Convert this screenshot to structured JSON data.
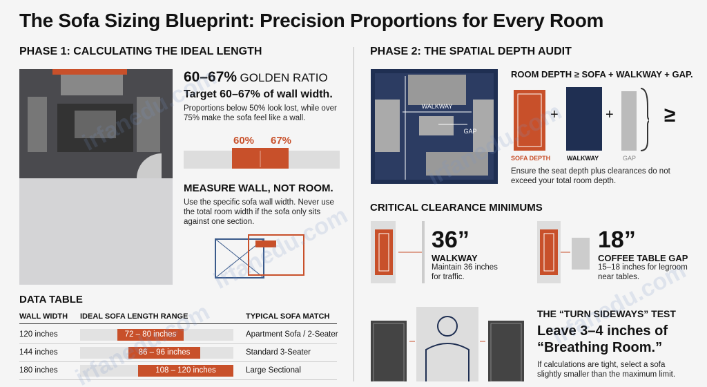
{
  "title": "The Sofa Sizing Blueprint: Precision Proportions for Every Room",
  "phase1": {
    "heading": "PHASE 1: CALCULATING THE IDEAL LENGTH",
    "ratio": {
      "big": "60–67%",
      "label": "GOLDEN RATIO",
      "target": "Target 60–67% of wall width.",
      "text": "Proportions below 50% look lost, while over 75% make the sofa feel like a wall.",
      "low": "60%",
      "high": "67%"
    },
    "measure": {
      "heading": "MEASURE WALL, NOT ROOM.",
      "text": "Use the specific sofa wall width. Never use the total room width if the sofa only sits against one section."
    }
  },
  "table": {
    "heading": "DATA TABLE",
    "columns": [
      "WALL WIDTH",
      "IDEAL SOFA LENGTH RANGE",
      "TYPICAL SOFA MATCH"
    ],
    "rows": [
      [
        "120 inches",
        "72 – 80 inches",
        "Apartment Sofa / 2-Seater"
      ],
      [
        "144 inches",
        "86 – 96 inches",
        "Standard 3-Seater"
      ],
      [
        "180 inches",
        "108 – 120 inches",
        "Large Sectional"
      ]
    ]
  },
  "phase2": {
    "heading": "PHASE 2: THE SPATIAL DEPTH AUDIT",
    "plan": {
      "walkway": "WALKWAY",
      "gap": "GAP"
    },
    "formula": {
      "heading": "ROOM DEPTH ≥ SOFA + WALKWAY + GAP.",
      "plus": "+",
      "geq": "≥",
      "sofa": "SOFA DEPTH",
      "walkway": "WALKWAY",
      "gap": "GAP",
      "text": "Ensure the seat depth plus clearances do not exceed your total room depth."
    },
    "clearance": {
      "heading": "CRITICAL CLEARANCE MINIMUMS",
      "items": [
        {
          "value": "36”",
          "label": "WALKWAY",
          "text": "Maintain 36 inches for traffic."
        },
        {
          "value": "18”",
          "label": "COFFEE TABLE GAP",
          "text": "15–18 inches for legroom near tables."
        }
      ]
    },
    "sideways": {
      "heading": "THE “TURN SIDEWAYS” TEST",
      "line1": "Leave 3–4 inches of",
      "line2": "“Breathing Room.”",
      "text": "If calculations are tight, select a sofa slightly smaller than the maximum limit."
    }
  },
  "watermark": "irfanedu.com"
}
